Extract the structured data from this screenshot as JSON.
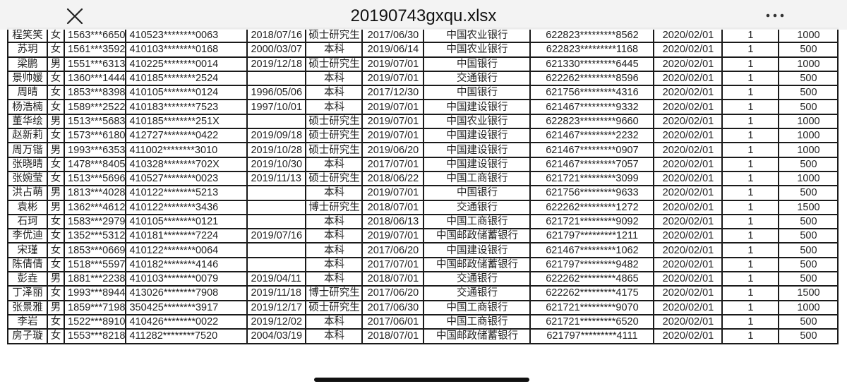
{
  "header": {
    "title": "20190743gxqu.xlsx",
    "close_icon": "close-x-icon",
    "more_icon": "more-dots-icon"
  },
  "table": {
    "rows": [
      [
        "程笑笑",
        "女",
        "1563***6650",
        "410523********0063",
        "2018/07/16",
        "硕士研究生",
        "2017/06/30",
        "中国农业银行",
        "622823*********8562",
        "2020/02/01",
        "1",
        "1000"
      ],
      [
        "苏玥",
        "女",
        "1561***3592",
        "410103********0168",
        "2000/03/07",
        "本科",
        "2019/06/14",
        "中国农业银行",
        "622823*********1168",
        "2020/02/01",
        "1",
        "500"
      ],
      [
        "梁鹏",
        "男",
        "1551***6313",
        "410225********0014",
        "2019/12/18",
        "硕士研究生",
        "2019/07/01",
        "中国银行",
        "621330*********6445",
        "2020/02/01",
        "1",
        "1000"
      ],
      [
        "景帅媛",
        "女",
        "1360***1444",
        "410185********2524",
        "",
        "本科",
        "2019/07/01",
        "交通银行",
        "622262*********8596",
        "2020/02/01",
        "1",
        "500"
      ],
      [
        "周晴",
        "女",
        "1853***8398",
        "410105********0124",
        "1996/05/06",
        "本科",
        "2017/12/30",
        "中国银行",
        "621756*********4316",
        "2020/02/01",
        "1",
        "500"
      ],
      [
        "杨浩楠",
        "女",
        "1589***2522",
        "410183********7523",
        "1997/10/01",
        "本科",
        "2019/07/01",
        "中国建设银行",
        "621467*********9332",
        "2020/02/01",
        "1",
        "500"
      ],
      [
        "董华绘",
        "男",
        "1513***5683",
        "410185********251X",
        "",
        "硕士研究生",
        "2019/07/01",
        "中国农业银行",
        "622823*********9660",
        "2020/02/01",
        "1",
        "1000"
      ],
      [
        "赵新莉",
        "女",
        "1573***6180",
        "412727********0422",
        "2019/09/18",
        "硕士研究生",
        "2019/07/01",
        "中国建设银行",
        "621467*********2232",
        "2020/02/01",
        "1",
        "1000"
      ],
      [
        "周万锴",
        "男",
        "1993***6353",
        "411002********3010",
        "2019/10/28",
        "硕士研究生",
        "2019/06/20",
        "中国建设银行",
        "621467*********0907",
        "2020/02/01",
        "1",
        "1000"
      ],
      [
        "张晓晴",
        "女",
        "1478***8405",
        "410328********702X",
        "2019/10/30",
        "本科",
        "2017/07/01",
        "中国建设银行",
        "621467*********7057",
        "2020/02/01",
        "1",
        "500"
      ],
      [
        "张婉莹",
        "女",
        "1513***5696",
        "410527********0023",
        "2019/11/13",
        "硕士研究生",
        "2018/06/22",
        "中国工商银行",
        "621721*********3099",
        "2020/02/01",
        "1",
        "1000"
      ],
      [
        "洪占萌",
        "男",
        "1813***4028",
        "410122********5213",
        "",
        "本科",
        "2019/07/01",
        "中国银行",
        "621756*********9633",
        "2020/02/01",
        "1",
        "500"
      ],
      [
        "袁彬",
        "男",
        "1362***4612",
        "410122********3436",
        "",
        "博士研究生",
        "2018/07/01",
        "交通银行",
        "622262*********1272",
        "2020/02/01",
        "1",
        "1500"
      ],
      [
        "石珂",
        "女",
        "1583***2979",
        "410105********0121",
        "",
        "本科",
        "2018/06/13",
        "中国工商银行",
        "621721*********9092",
        "2020/02/01",
        "1",
        "500"
      ],
      [
        "李优迪",
        "女",
        "1352***5312",
        "410181********7224",
        "2019/07/16",
        "本科",
        "2019/07/01",
        "中国邮政储蓄银行",
        "621797*********1211",
        "2020/02/01",
        "1",
        "500"
      ],
      [
        "宋瑾",
        "女",
        "1853***0669",
        "410122********0064",
        "",
        "本科",
        "2017/06/20",
        "中国建设银行",
        "621467*********1062",
        "2020/02/01",
        "1",
        "500"
      ],
      [
        "陈倩倩",
        "女",
        "1518***5597",
        "410182********4146",
        "",
        "本科",
        "2017/07/01",
        "中国邮政储蓄银行",
        "621797*********9482",
        "2020/02/01",
        "1",
        "500"
      ],
      [
        "彭垚",
        "男",
        "1881***2238",
        "410103********0079",
        "2019/04/11",
        "本科",
        "2018/07/01",
        "交通银行",
        "622262*********4865",
        "2020/02/01",
        "1",
        "500"
      ],
      [
        "丁泽丽",
        "女",
        "1993***8944",
        "413026********7908",
        "2019/11/18",
        "博士研究生",
        "2017/06/20",
        "交通银行",
        "622262*********4175",
        "2020/02/01",
        "1",
        "1500"
      ],
      [
        "张景雅",
        "男",
        "1859***7198",
        "350425********3917",
        "2019/12/17",
        "硕士研究生",
        "2017/06/30",
        "中国工商银行",
        "621721*********9070",
        "2020/02/01",
        "1",
        "1000"
      ],
      [
        "李岩",
        "女",
        "1522***8910",
        "410426********0022",
        "2019/12/02",
        "本科",
        "2017/06/01",
        "中国工商银行",
        "621721*********6520",
        "2020/02/01",
        "1",
        "500"
      ],
      [
        "房子璇",
        "女",
        "1553***8218",
        "411282********7520",
        "2004/03/19",
        "本科",
        "2018/07/01",
        "中国邮政储蓄银行",
        "621797*********4111",
        "2020/02/01",
        "1",
        "500"
      ]
    ]
  }
}
